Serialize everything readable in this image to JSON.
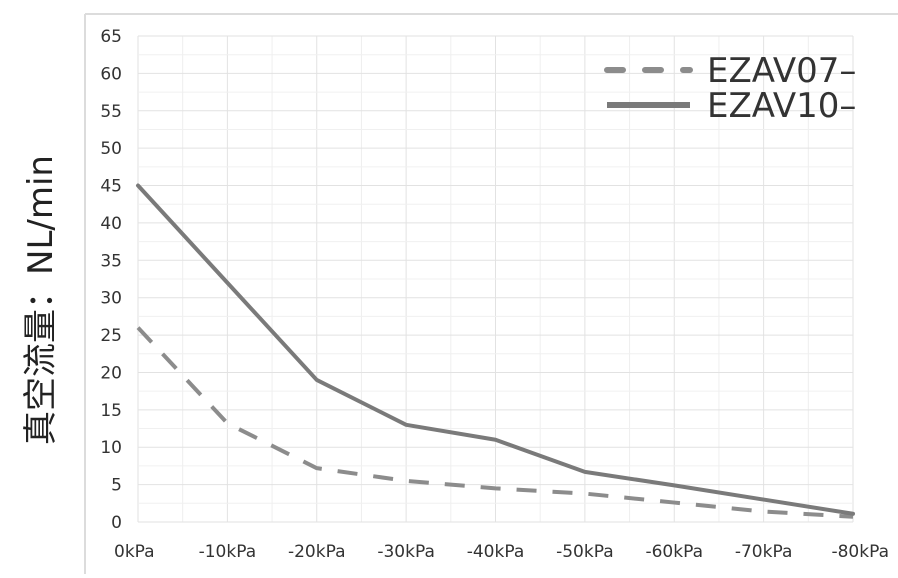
{
  "chart_data": {
    "type": "line",
    "title": "",
    "xlabel": "",
    "ylabel": "真空流量：NL/min",
    "categories": [
      "0kPa",
      "-10kPa",
      "-20kPa",
      "-30kPa",
      "-40kPa",
      "-50kPa",
      "-60kPa",
      "-70kPa",
      "-80kPa"
    ],
    "ylim": [
      0,
      65
    ],
    "yticks": [
      0,
      5,
      10,
      15,
      20,
      25,
      30,
      35,
      40,
      45,
      50,
      55,
      60,
      65
    ],
    "grid": true,
    "legend_position": "top-right",
    "series": [
      {
        "name": "EZAV07–",
        "style": "dashed",
        "color": "#8c8c8c",
        "values": [
          26,
          13.2,
          7.2,
          5.5,
          4.5,
          3.8,
          2.6,
          1.4,
          0.7
        ]
      },
      {
        "name": "EZAV10–",
        "style": "solid",
        "color": "#7a7a7a",
        "values": [
          45,
          32,
          19,
          13,
          11,
          6.7,
          4.9,
          3,
          1.1
        ]
      }
    ]
  }
}
